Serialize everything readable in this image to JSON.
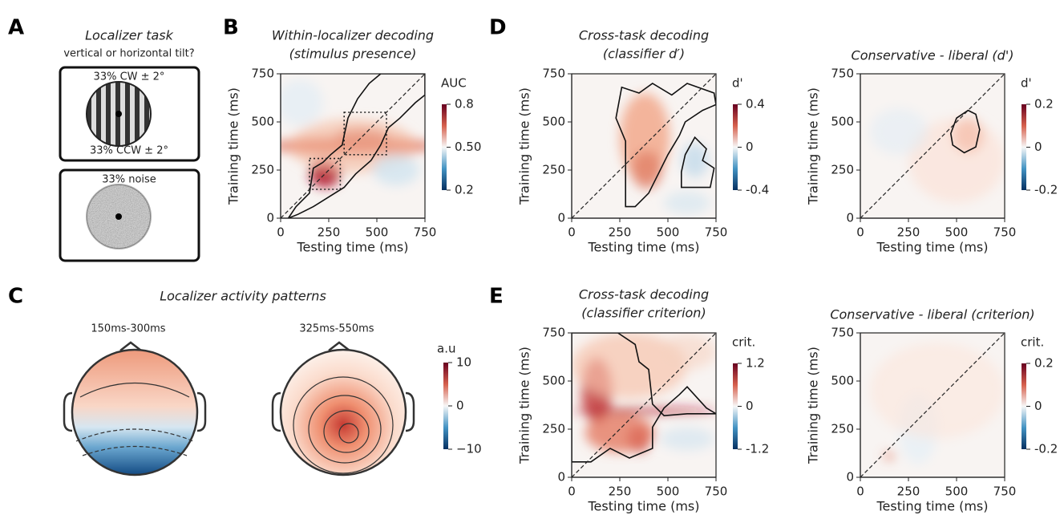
{
  "panels": {
    "a": {
      "letter": "A",
      "title": "Localizer task",
      "subtitle": "vertical or horizontal tilt?",
      "box1_top": "33% CW ± 2°",
      "box1_bottom": "33% CCW ± 2°",
      "box2_top": "33% noise"
    },
    "b": {
      "letter": "B",
      "title": "Within-localizer decoding",
      "subtitle": "(stimulus presence)",
      "xlabel": "Testing time (ms)",
      "ylabel": "Training time (ms)",
      "xlim": [
        0,
        750
      ],
      "ylim": [
        0,
        750
      ],
      "xticks": [
        0,
        250,
        500,
        750
      ],
      "yticks": [
        0,
        250,
        500,
        750
      ],
      "colorbar": {
        "label": "AUC",
        "lim": [
          0.2,
          0.8
        ],
        "ticks": [
          0.2,
          {
            "value": 0.5,
            "label": "0.50"
          },
          0.8
        ]
      }
    },
    "c": {
      "letter": "C",
      "title": "Localizer activity patterns",
      "head1": "150ms-300ms",
      "head2": "325ms-550ms",
      "colorbar": {
        "label": "a.u",
        "lim": [
          -10,
          10
        ],
        "ticks": [
          {
            "value": -10,
            "label": "−10"
          },
          0,
          10
        ]
      }
    },
    "d": {
      "letter": "D",
      "left": {
        "title": "Cross-task decoding",
        "subtitle": "(classifier d′)",
        "xlabel": "Testing time (ms)",
        "ylabel": "Training time (ms)",
        "xlim": [
          0,
          750
        ],
        "ylim": [
          0,
          750
        ],
        "xticks": [
          0,
          250,
          500,
          750
        ],
        "yticks": [
          0,
          250,
          500,
          750
        ],
        "colorbar": {
          "label": "d'",
          "lim": [
            -0.4,
            0.4
          ],
          "ticks": [
            -0.4,
            0,
            0.4
          ]
        }
      },
      "right": {
        "title": "Conservative - liberal (d')",
        "xlabel": "Testing time (ms)",
        "ylabel": "Training time (ms)",
        "xlim": [
          0,
          750
        ],
        "ylim": [
          0,
          750
        ],
        "xticks": [
          0,
          250,
          500,
          750
        ],
        "yticks": [
          0,
          250,
          500,
          750
        ],
        "colorbar": {
          "label": "d'",
          "lim": [
            -0.2,
            0.2
          ],
          "ticks": [
            -0.2,
            0,
            0.2
          ]
        }
      }
    },
    "e": {
      "letter": "E",
      "left": {
        "title": "Cross-task decoding",
        "subtitle": "(classifier criterion)",
        "xlabel": "Testing time (ms)",
        "ylabel": "Training time (ms)",
        "xlim": [
          0,
          750
        ],
        "ylim": [
          0,
          750
        ],
        "xticks": [
          0,
          250,
          500,
          750
        ],
        "yticks": [
          0,
          250,
          500,
          750
        ],
        "colorbar": {
          "label": "crit.",
          "lim": [
            -1.2,
            1.2
          ],
          "ticks": [
            -1.2,
            0,
            1.2
          ]
        }
      },
      "right": {
        "title": "Conservative - liberal (criterion)",
        "xlabel": "Testing time (ms)",
        "ylabel": "Training time (ms)",
        "xlim": [
          0,
          750
        ],
        "ylim": [
          0,
          750
        ],
        "xticks": [
          0,
          250,
          500,
          750
        ],
        "yticks": [
          0,
          250,
          500,
          750
        ],
        "colorbar": {
          "label": "crit.",
          "lim": [
            -0.2,
            0.2
          ],
          "ticks": [
            -0.2,
            0,
            0.2
          ]
        }
      }
    }
  }
}
